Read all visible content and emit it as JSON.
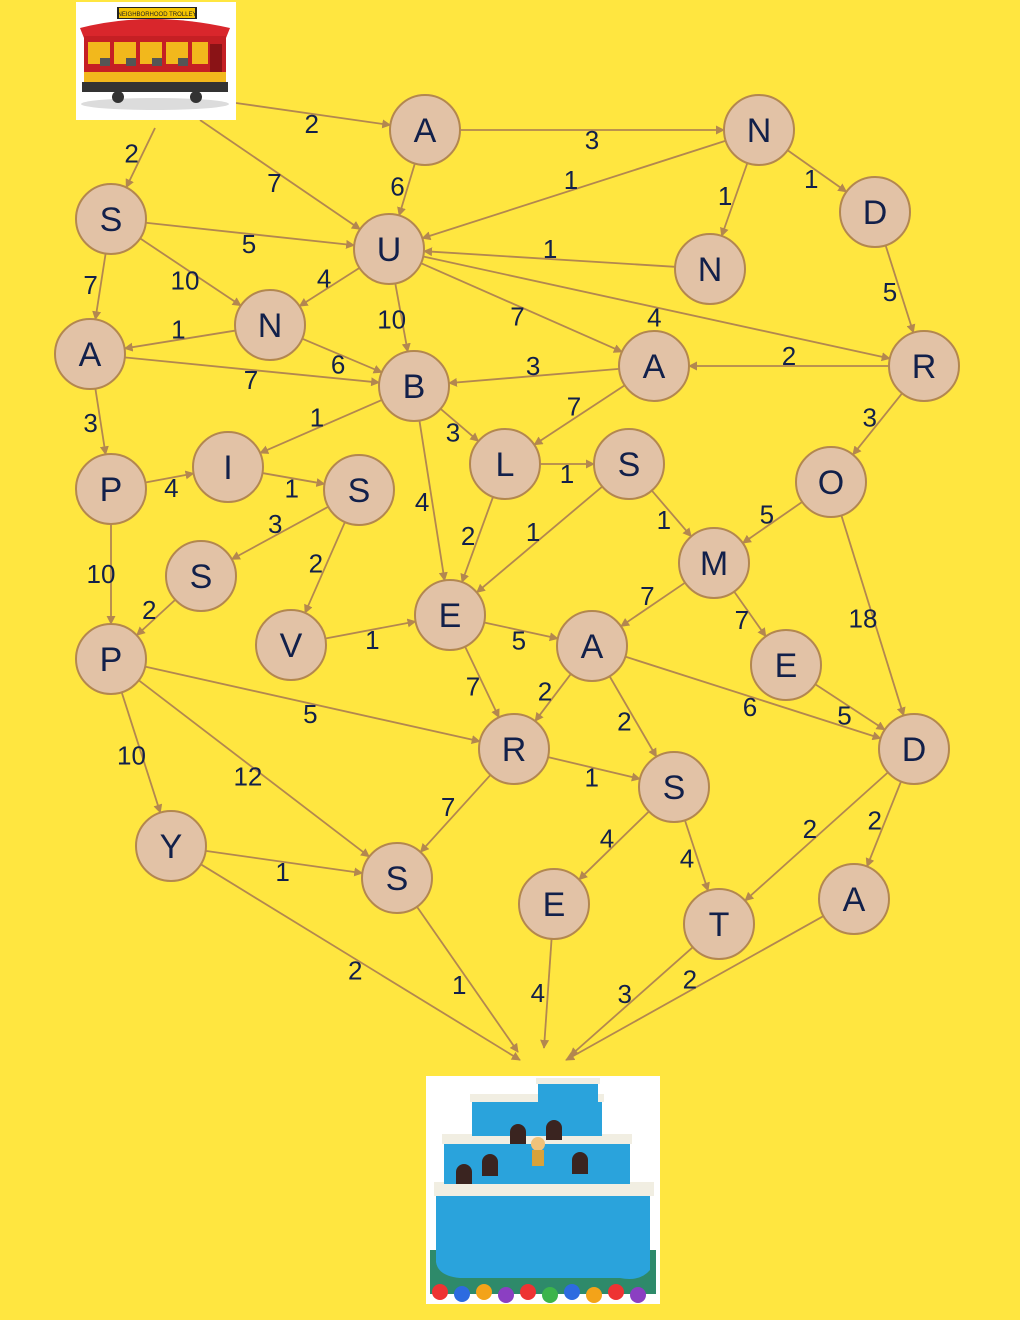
{
  "colors": {
    "background": "#FFE640",
    "node_fill": "#E2C2A6",
    "node_stroke": "#B3874F",
    "edge": "#B3874F",
    "text": "#12204a"
  },
  "start_icon": "neighborhood-trolley-icon",
  "start_sign_text": "NEIGHBORHOOD TROLLEY",
  "end_icon": "castle-icon",
  "nodes": [
    {
      "id": "a1",
      "label": "A"
    },
    {
      "id": "n1",
      "label": "N"
    },
    {
      "id": "d1",
      "label": "D"
    },
    {
      "id": "s1",
      "label": "S"
    },
    {
      "id": "u",
      "label": "U"
    },
    {
      "id": "n3",
      "label": "N"
    },
    {
      "id": "a2",
      "label": "A"
    },
    {
      "id": "n2",
      "label": "N"
    },
    {
      "id": "b",
      "label": "B"
    },
    {
      "id": "a3",
      "label": "A"
    },
    {
      "id": "r1",
      "label": "R"
    },
    {
      "id": "p1",
      "label": "P"
    },
    {
      "id": "i",
      "label": "I"
    },
    {
      "id": "s2",
      "label": "S"
    },
    {
      "id": "l",
      "label": "L"
    },
    {
      "id": "s3",
      "label": "S"
    },
    {
      "id": "o",
      "label": "O"
    },
    {
      "id": "s4",
      "label": "S"
    },
    {
      "id": "m",
      "label": "M"
    },
    {
      "id": "p2",
      "label": "P"
    },
    {
      "id": "v",
      "label": "V"
    },
    {
      "id": "e1",
      "label": "E"
    },
    {
      "id": "a4",
      "label": "A"
    },
    {
      "id": "e2",
      "label": "E"
    },
    {
      "id": "r2",
      "label": "R"
    },
    {
      "id": "d2",
      "label": "D"
    },
    {
      "id": "s5",
      "label": "S"
    },
    {
      "id": "y",
      "label": "Y"
    },
    {
      "id": "s6",
      "label": "S"
    },
    {
      "id": "e3",
      "label": "E"
    },
    {
      "id": "t",
      "label": "T"
    },
    {
      "id": "a5",
      "label": "A"
    }
  ],
  "edges": [
    {
      "from": "start",
      "to": "a1",
      "weight": "2"
    },
    {
      "from": "start",
      "to": "s1",
      "weight": "2"
    },
    {
      "from": "start",
      "to": "u",
      "weight": "7"
    },
    {
      "from": "a1",
      "to": "n1",
      "weight": "3"
    },
    {
      "from": "a1",
      "to": "u",
      "weight": "6"
    },
    {
      "from": "n1",
      "to": "u",
      "weight": "1"
    },
    {
      "from": "n1",
      "to": "n3",
      "weight": "1"
    },
    {
      "from": "n1",
      "to": "d1",
      "weight": "1"
    },
    {
      "from": "d1",
      "to": "r1",
      "weight": "5"
    },
    {
      "from": "s1",
      "to": "u",
      "weight": "5"
    },
    {
      "from": "s1",
      "to": "n2",
      "weight": "10"
    },
    {
      "from": "s1",
      "to": "a2",
      "weight": "7"
    },
    {
      "from": "n3",
      "to": "u",
      "weight": "1"
    },
    {
      "from": "u",
      "to": "n2",
      "weight": "4"
    },
    {
      "from": "u",
      "to": "b",
      "weight": "10"
    },
    {
      "from": "u",
      "to": "a3",
      "weight": "7"
    },
    {
      "from": "u",
      "to": "r1",
      "weight": "4"
    },
    {
      "from": "n2",
      "to": "a2",
      "weight": "1"
    },
    {
      "from": "n2",
      "to": "b",
      "weight": "6"
    },
    {
      "from": "a2",
      "to": "b",
      "weight": "7"
    },
    {
      "from": "a2",
      "to": "p1",
      "weight": "3"
    },
    {
      "from": "r1",
      "to": "a3",
      "weight": "2"
    },
    {
      "from": "r1",
      "to": "o",
      "weight": "3"
    },
    {
      "from": "a3",
      "to": "b",
      "weight": "3"
    },
    {
      "from": "a3",
      "to": "l",
      "weight": "7"
    },
    {
      "from": "b",
      "to": "i",
      "weight": "1"
    },
    {
      "from": "b",
      "to": "l",
      "weight": "3"
    },
    {
      "from": "b",
      "to": "e1",
      "weight": "4"
    },
    {
      "from": "p1",
      "to": "i",
      "weight": "4"
    },
    {
      "from": "p1",
      "to": "p2",
      "weight": "10"
    },
    {
      "from": "i",
      "to": "s2",
      "weight": "1"
    },
    {
      "from": "s2",
      "to": "s4",
      "weight": "3"
    },
    {
      "from": "s2",
      "to": "v",
      "weight": "2"
    },
    {
      "from": "l",
      "to": "s3",
      "weight": "1"
    },
    {
      "from": "l",
      "to": "e1",
      "weight": "2"
    },
    {
      "from": "s3",
      "to": "e1",
      "weight": "1"
    },
    {
      "from": "s3",
      "to": "m",
      "weight": "1"
    },
    {
      "from": "o",
      "to": "m",
      "weight": "5"
    },
    {
      "from": "o",
      "to": "d2",
      "weight": "18"
    },
    {
      "from": "s4",
      "to": "p2",
      "weight": "2"
    },
    {
      "from": "v",
      "to": "e1",
      "weight": "1"
    },
    {
      "from": "m",
      "to": "a4",
      "weight": "7"
    },
    {
      "from": "m",
      "to": "e2",
      "weight": "7"
    },
    {
      "from": "e1",
      "to": "a4",
      "weight": "5"
    },
    {
      "from": "e1",
      "to": "r2",
      "weight": "7"
    },
    {
      "from": "a4",
      "to": "r2",
      "weight": "2"
    },
    {
      "from": "a4",
      "to": "s6",
      "weight": "2"
    },
    {
      "from": "a4",
      "to": "d2",
      "weight": "6"
    },
    {
      "from": "e2",
      "to": "d2",
      "weight": "5"
    },
    {
      "from": "p2",
      "to": "r2",
      "weight": "5"
    },
    {
      "from": "p2",
      "to": "y",
      "weight": "10"
    },
    {
      "from": "p2",
      "to": "s5",
      "weight": "12"
    },
    {
      "from": "r2",
      "to": "s6",
      "weight": "1"
    },
    {
      "from": "r2",
      "to": "s5",
      "weight": "7"
    },
    {
      "from": "d2",
      "to": "t",
      "weight": "2"
    },
    {
      "from": "d2",
      "to": "a5",
      "weight": "2"
    },
    {
      "from": "s6",
      "to": "e3",
      "weight": "4"
    },
    {
      "from": "s6",
      "to": "t",
      "weight": "4"
    },
    {
      "from": "y",
      "to": "s5",
      "weight": "1"
    },
    {
      "from": "y",
      "to": "end",
      "weight": "2"
    },
    {
      "from": "s5",
      "to": "end",
      "weight": "1"
    },
    {
      "from": "e3",
      "to": "end",
      "weight": "4"
    },
    {
      "from": "t",
      "to": "end",
      "weight": "3"
    },
    {
      "from": "a5",
      "to": "end",
      "weight": "2"
    }
  ]
}
